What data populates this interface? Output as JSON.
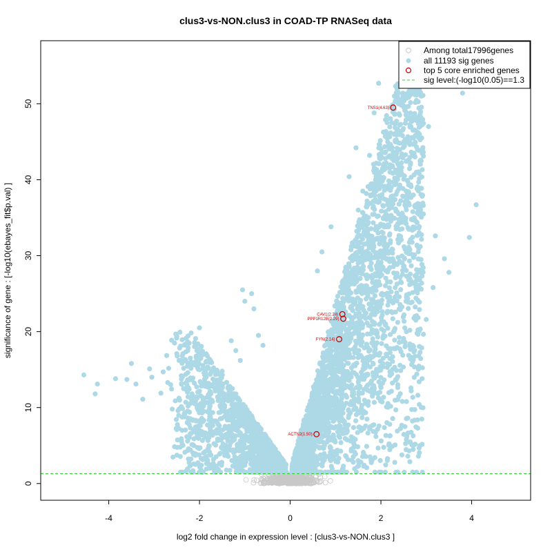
{
  "chart_data": {
    "type": "scatter",
    "title": "clus3-vs-NON.clus3 in COAD-TP RNASeq data",
    "xlabel": "log2 fold change in expression level : [clus3-vs-NON.clus3 ]",
    "ylabel": "significance of gene : [-log10(ebayes_fit$p.val) ]",
    "xlim": [
      -5.5,
      5.3
    ],
    "ylim": [
      -2.2,
      58.3
    ],
    "x_ticks": [
      -4,
      -2,
      0,
      2,
      4
    ],
    "y_ticks": [
      0,
      10,
      20,
      30,
      40,
      50
    ],
    "grid": false,
    "legend_position": "top-right",
    "legend": [
      {
        "label": "Among total17996genes",
        "symbol": "open-circle",
        "color": "#c8c8c8"
      },
      {
        "label": "all 11193 sig genes",
        "symbol": "filled-circle",
        "color": "#add8e6"
      },
      {
        "label": "top 5 core enriched genes",
        "symbol": "open-circle",
        "color": "#cc0000"
      },
      {
        "label": "sig level:(-log10(0.05)==1.3",
        "symbol": "dashed-line",
        "color": "#33cc33"
      }
    ],
    "sig_level": 1.3,
    "series": [
      {
        "name": "all 11193 sig genes",
        "color": "#add8e6",
        "points": [
          [
            -4.55,
            14.3
          ],
          [
            -4.3,
            11.8
          ],
          [
            -4.25,
            13.1
          ],
          [
            -3.85,
            13.8
          ],
          [
            -3.6,
            13.7
          ],
          [
            -3.5,
            15.8
          ],
          [
            -3.4,
            13.1
          ],
          [
            -3.25,
            11.1
          ],
          [
            -3.1,
            15.1
          ],
          [
            -3.05,
            14.0
          ],
          [
            -2.85,
            11.9
          ],
          [
            -2.8,
            14.7
          ],
          [
            -2.7,
            13.3
          ],
          [
            -2.55,
            18.5
          ],
          [
            -2.5,
            17.1
          ],
          [
            -2.45,
            16.2
          ],
          [
            -2.4,
            14.2
          ],
          [
            -2.35,
            12.5
          ],
          [
            -2.2,
            13.9
          ],
          [
            -2.0,
            20.5
          ],
          [
            -1.95,
            17.4
          ],
          [
            -1.85,
            16.1
          ],
          [
            -1.8,
            15.2
          ],
          [
            -2.6,
            9.8
          ],
          [
            -2.5,
            7.1
          ],
          [
            -2.4,
            5.9
          ],
          [
            -2.25,
            8.2
          ],
          [
            -2.1,
            10.5
          ],
          [
            -1.75,
            13.0
          ],
          [
            -1.6,
            11.4
          ],
          [
            -1.5,
            14.8
          ],
          [
            -1.45,
            8.8
          ],
          [
            -1.3,
            18.8
          ],
          [
            -1.2,
            17.5
          ],
          [
            -1.1,
            16.2
          ],
          [
            -1.05,
            25.5
          ],
          [
            -1.0,
            24.0
          ],
          [
            -0.85,
            25.0
          ],
          [
            -0.8,
            23.0
          ],
          [
            -0.7,
            19.5
          ],
          [
            -0.6,
            18.2
          ],
          [
            -1.4,
            4.5
          ],
          [
            -1.2,
            3.2
          ],
          [
            -1.0,
            2.4
          ],
          [
            4.1,
            36.7
          ],
          [
            3.95,
            32.4
          ],
          [
            3.8,
            51.4
          ],
          [
            3.5,
            27.8
          ],
          [
            3.4,
            29.6
          ],
          [
            3.2,
            32.6
          ],
          [
            3.15,
            25.8
          ],
          [
            3.05,
            47.0
          ],
          [
            2.9,
            45.5
          ],
          [
            2.75,
            43.0
          ],
          [
            2.6,
            38.0
          ],
          [
            2.55,
            51.3
          ],
          [
            2.45,
            53.6
          ],
          [
            2.35,
            45.0
          ],
          [
            2.2,
            41.0
          ],
          [
            2.1,
            47.9
          ],
          [
            1.95,
            52.7
          ],
          [
            1.85,
            48.8
          ],
          [
            1.75,
            43.2
          ],
          [
            1.6,
            38.5
          ],
          [
            1.5,
            36.0
          ],
          [
            1.45,
            44.2
          ],
          [
            1.3,
            40.4
          ],
          [
            2.7,
            18.2
          ],
          [
            2.5,
            19.1
          ],
          [
            2.25,
            22.5
          ],
          [
            3.0,
            21.6
          ],
          [
            2.85,
            22.9
          ],
          [
            2.65,
            16.4
          ],
          [
            0.9,
            33.8
          ],
          [
            0.7,
            30.5
          ],
          [
            0.6,
            28.0
          ]
        ]
      },
      {
        "name": "top 5 core enriched genes",
        "color": "#cc0000",
        "points": [
          {
            "label": "TNS1(4.63)",
            "x": 2.27,
            "y": 49.5
          },
          {
            "label": "CAV1(2.24)",
            "x": 1.15,
            "y": 22.3
          },
          {
            "label": "PPP1R12B(2.29)",
            "x": 1.17,
            "y": 21.7
          },
          {
            "label": "FYN(2.14)",
            "x": 1.08,
            "y": 19.0
          },
          {
            "label": "ACTN2(1.50)",
            "x": 0.58,
            "y": 6.5
          }
        ]
      }
    ]
  }
}
